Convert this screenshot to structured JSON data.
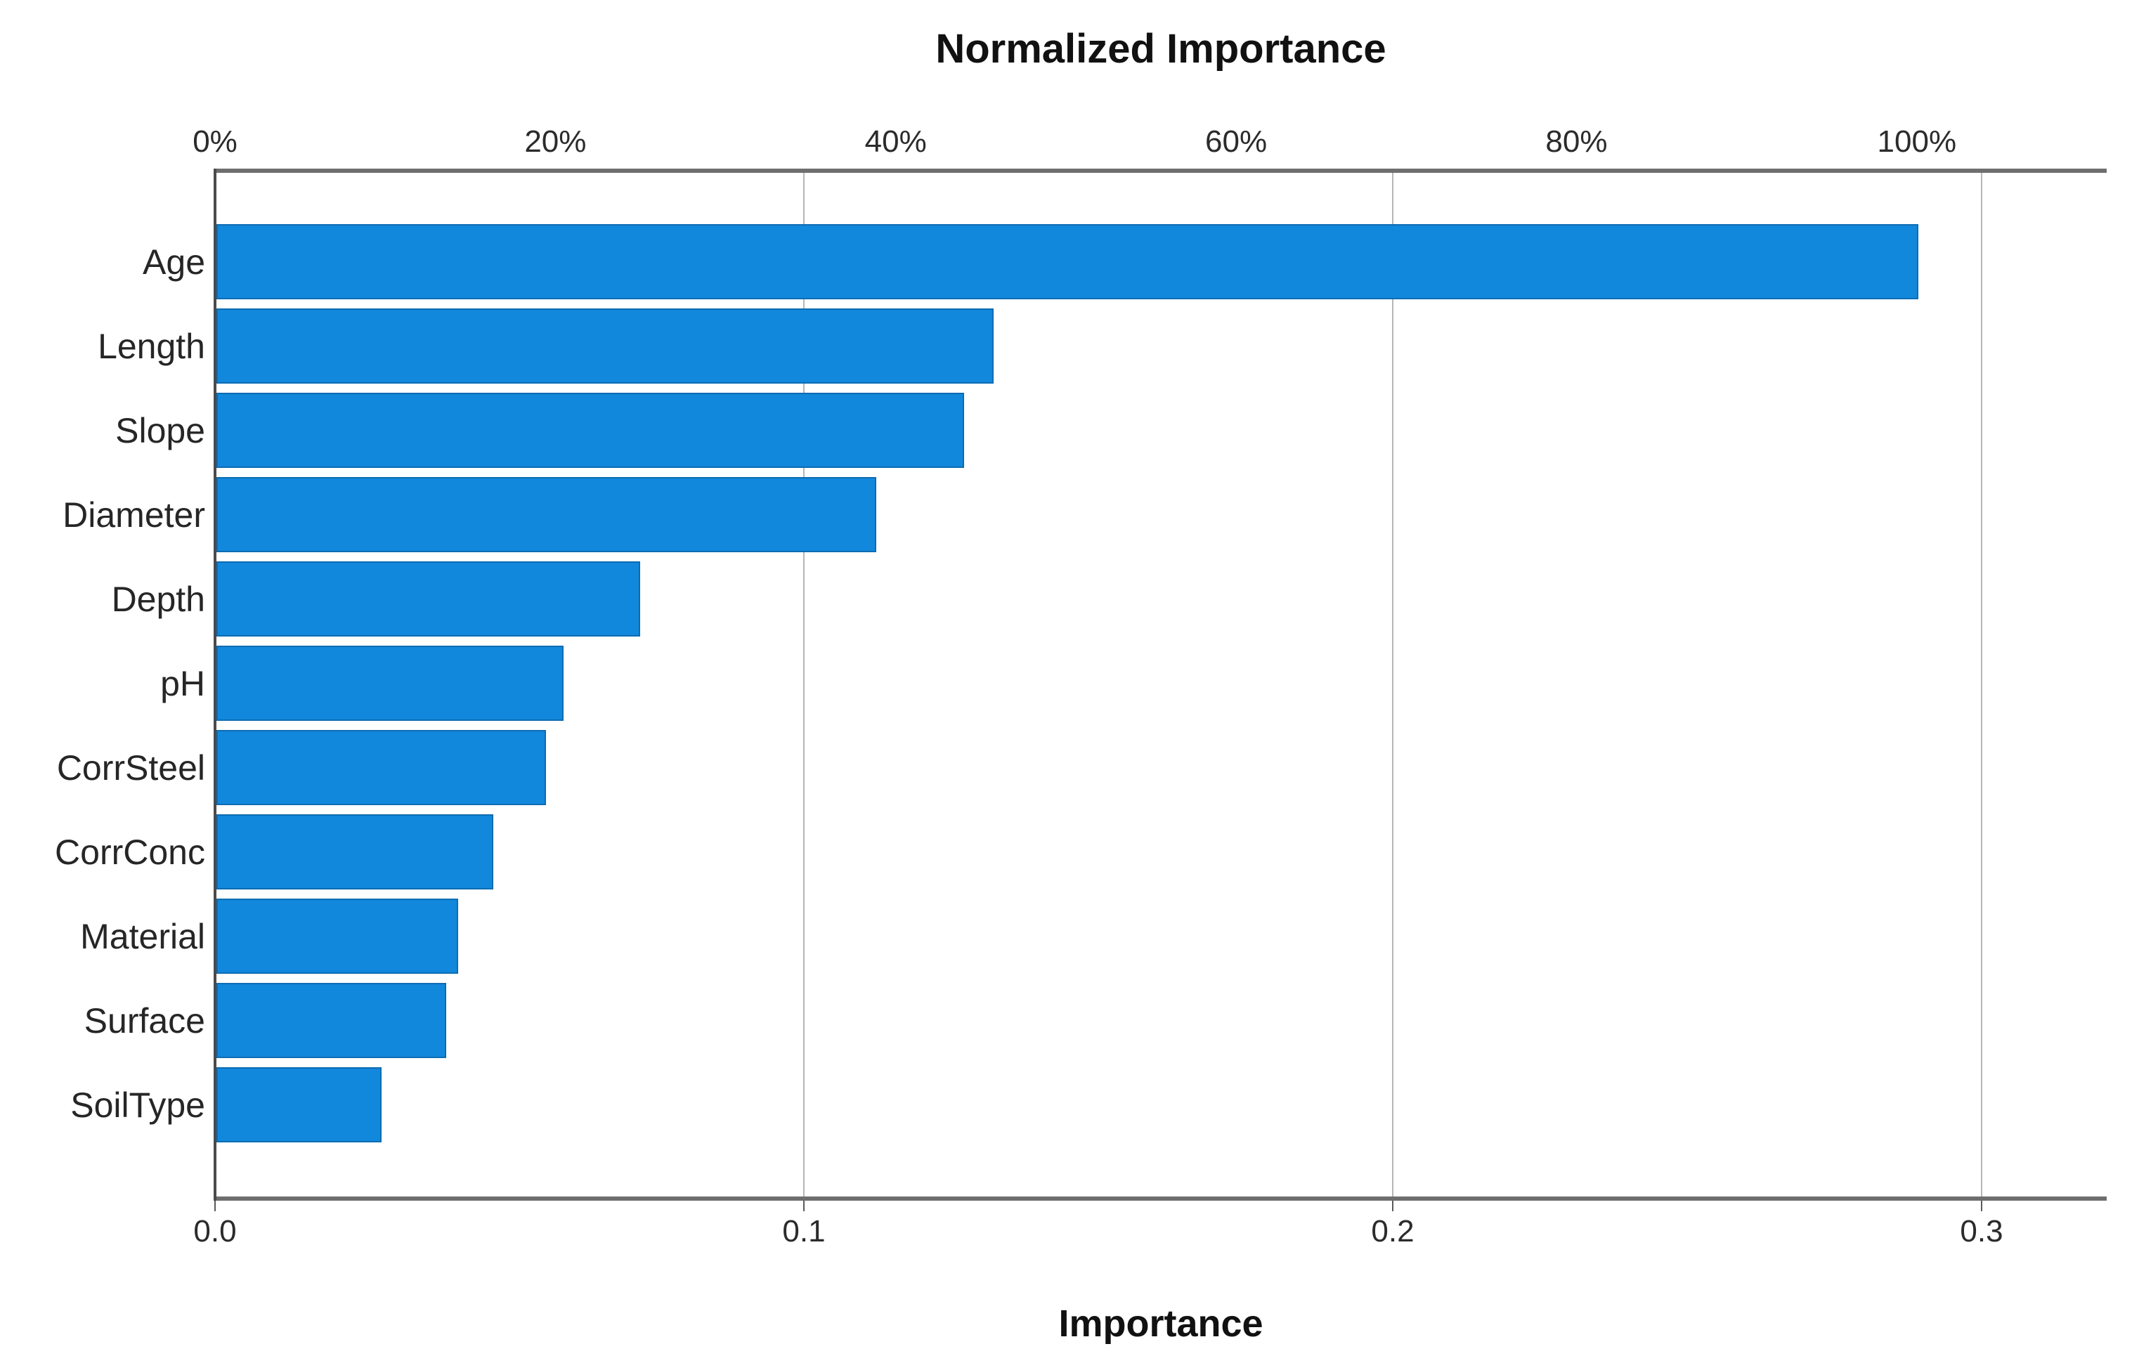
{
  "title": "Normalized Importance",
  "axes": {
    "top": {
      "ticks": [
        {
          "label": "0%",
          "pct": 0
        },
        {
          "label": "20%",
          "pct": 20
        },
        {
          "label": "40%",
          "pct": 40
        },
        {
          "label": "60%",
          "pct": 60
        },
        {
          "label": "80%",
          "pct": 80
        },
        {
          "label": "100%",
          "pct": 100
        }
      ]
    },
    "bottom": {
      "title": "Importance",
      "ticks": [
        {
          "label": "0.0",
          "value": 0.0
        },
        {
          "label": "0.1",
          "value": 0.1
        },
        {
          "label": "0.2",
          "value": 0.2
        },
        {
          "label": "0.3",
          "value": 0.3
        }
      ]
    }
  },
  "chart_data": {
    "type": "bar",
    "orientation": "horizontal",
    "title": "Normalized Importance",
    "xlabel": "Importance",
    "categories": [
      "Age",
      "Length",
      "Slope",
      "Diameter",
      "Depth",
      "pH",
      "CorrSteel",
      "CorrConc",
      "Material",
      "Surface",
      "SoilType"
    ],
    "series": [
      {
        "name": "Importance",
        "values": [
          0.289,
          0.132,
          0.127,
          0.112,
          0.072,
          0.059,
          0.056,
          0.047,
          0.041,
          0.039,
          0.028
        ]
      }
    ],
    "normalized_pct": [
      100,
      45.7,
      44.0,
      38.8,
      24.9,
      20.4,
      19.4,
      16.3,
      14.2,
      13.5,
      9.7
    ],
    "max_importance": 0.289,
    "xlim": [
      0,
      0.321
    ],
    "grid": true,
    "gridline_values": [
      0.1,
      0.2,
      0.3
    ],
    "legend": false,
    "bar_color": "#1288dc",
    "bar_border_color": "#0d6cb2",
    "axis_line_color": "#6e6e6e",
    "y_axis_line_color": "#4a4a4a",
    "gridline_color": "#b6b6b6",
    "background": "#ffffff"
  }
}
